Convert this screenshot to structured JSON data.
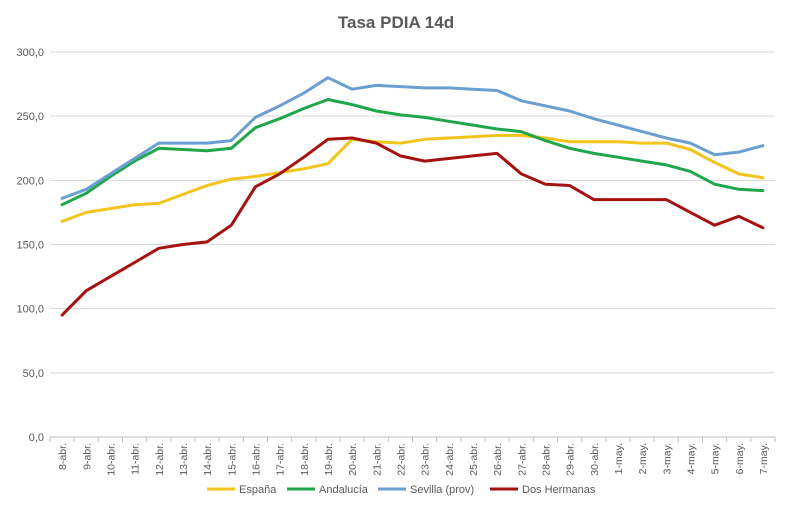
{
  "chart_data": {
    "type": "line",
    "title": "Tasa PDIA 14d",
    "xlabel": "",
    "ylabel": "",
    "ylim": [
      0,
      300
    ],
    "yticks": [
      "0,0",
      "50,0",
      "100,0",
      "150,0",
      "200,0",
      "250,0",
      "300,0"
    ],
    "grid": true,
    "legend_position": "bottom",
    "categories": [
      "8-abr.",
      "9-abr.",
      "10-abr.",
      "11-abr.",
      "12-abr.",
      "13-abr.",
      "14-abr.",
      "15-abr.",
      "16-abr.",
      "17-abr.",
      "18-abr.",
      "19-abr.",
      "20-abr.",
      "21-abr.",
      "22-abr.",
      "23-abr.",
      "24-abr.",
      "25-abr.",
      "26-abr.",
      "27-abr.",
      "28-abr.",
      "29-abr.",
      "30-abr.",
      "1-may.",
      "2-may.",
      "3-may.",
      "4-may.",
      "5-may.",
      "6-may.",
      "7-may."
    ],
    "series": [
      {
        "name": "España",
        "color": "#f2c41c",
        "values": [
          168,
          175,
          178,
          181,
          182,
          189,
          196,
          201,
          203,
          206,
          209,
          213,
          232,
          230,
          229,
          232,
          233,
          234,
          235,
          235,
          233,
          230,
          230,
          230,
          229,
          229,
          224,
          214,
          205,
          202
        ]
      },
      {
        "name": "Andalucía",
        "color": "#1fa64a",
        "values": [
          181,
          190,
          203,
          215,
          225,
          224,
          223,
          225,
          241,
          248,
          256,
          263,
          259,
          254,
          251,
          249,
          246,
          243,
          240,
          238,
          231,
          225,
          221,
          218,
          215,
          212,
          207,
          197,
          193,
          192
        ]
      },
      {
        "name": "Sevilla (prov)",
        "color": "#6a9fcf",
        "values": [
          186,
          193,
          205,
          217,
          229,
          229,
          229,
          231,
          249,
          258,
          268,
          280,
          271,
          274,
          273,
          272,
          272,
          271,
          270,
          262,
          258,
          254,
          248,
          243,
          238,
          233,
          229,
          220,
          222,
          227
        ]
      },
      {
        "name": "Dos Hermanas",
        "color": "#a51212",
        "values": [
          95,
          114,
          125,
          136,
          147,
          150,
          152,
          165,
          195,
          205,
          218,
          232,
          233,
          229,
          219,
          215,
          217,
          219,
          221,
          205,
          197,
          196,
          185,
          185,
          185,
          185,
          175,
          165,
          172,
          163
        ]
      }
    ]
  }
}
